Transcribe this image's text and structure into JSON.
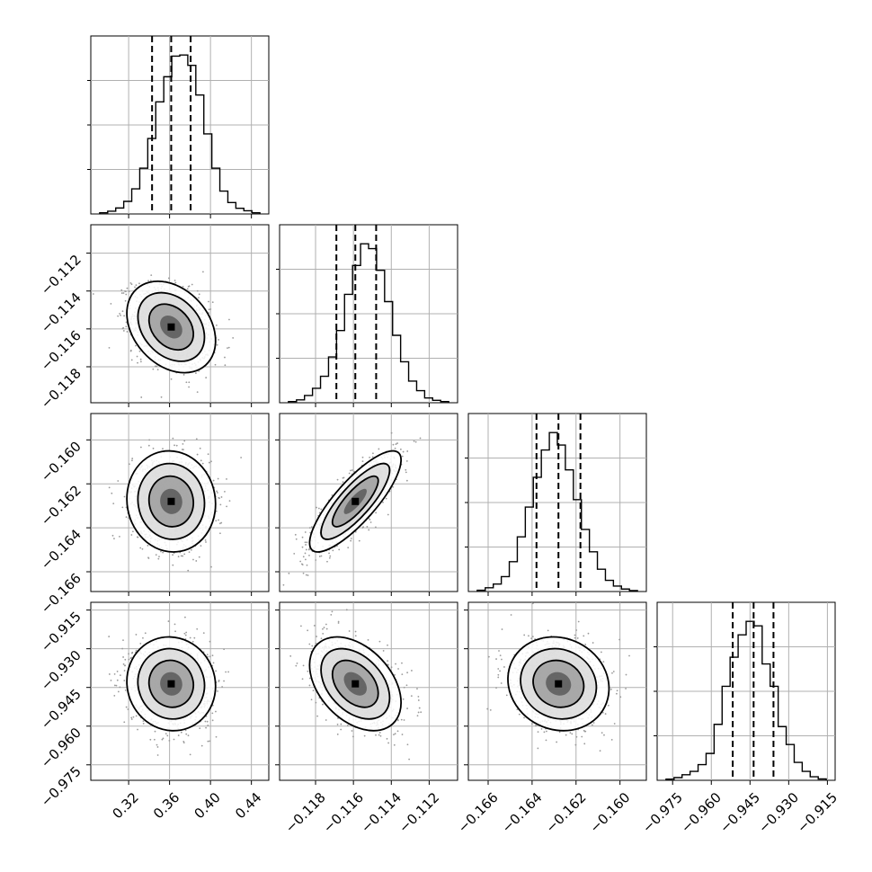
{
  "chart_data": {
    "type": "corner",
    "n_params": 4,
    "parameters": [
      {
        "index": 0,
        "median": 0.3616,
        "quantiles": [
          0.3429,
          0.3616,
          0.3806
        ],
        "range": [
          0.283,
          0.457
        ],
        "ticks": [
          0.32,
          0.36,
          0.4,
          0.44
        ],
        "tick_labels": [
          "0.32",
          "0.36",
          "0.40",
          "0.44"
        ],
        "hist": [
          0.5,
          1.2,
          2.6,
          5.5,
          11,
          20,
          33,
          49,
          60,
          69,
          69.5,
          65,
          52,
          35,
          20,
          10,
          5,
          2.5,
          1.4,
          0.5
        ]
      },
      {
        "index": 1,
        "median": -0.1159,
        "quantiles": [
          -0.1169,
          -0.1159,
          -0.1148
        ],
        "range": [
          -0.1199,
          -0.1105
        ],
        "ticks": [
          -0.118,
          -0.116,
          -0.114,
          -0.112
        ],
        "tick_labels": [
          "−0.118",
          "−0.116",
          "−0.114",
          "−0.112"
        ],
        "hist": [
          0.5,
          1.2,
          3,
          6,
          11,
          19,
          30,
          45,
          57,
          66,
          64,
          55,
          42,
          28,
          17,
          9,
          5,
          2,
          1,
          0.5
        ]
      },
      {
        "index": 2,
        "median": -0.1628,
        "quantiles": [
          -0.1638,
          -0.1628,
          -0.1618
        ],
        "range": [
          -0.1669,
          -0.1588
        ],
        "ticks": [
          -0.166,
          -0.164,
          -0.162,
          -0.16
        ],
        "tick_labels": [
          "−0.166",
          "−0.164",
          "−0.162",
          "−0.160"
        ],
        "hist": [
          0.5,
          1.5,
          3,
          6,
          12,
          22,
          34,
          46,
          57,
          64,
          59,
          49,
          37,
          25,
          16,
          9,
          4.5,
          2.2,
          1,
          0.4
        ]
      },
      {
        "index": 3,
        "median": -0.9436,
        "quantiles": [
          -0.9517,
          -0.9436,
          -0.9359
        ],
        "range": [
          -0.981,
          -0.912
        ],
        "ticks": [
          -0.975,
          -0.96,
          -0.945,
          -0.93,
          -0.915
        ],
        "tick_labels": [
          "−0.975",
          "−0.960",
          "−0.945",
          "−0.930",
          "−0.915"
        ],
        "hist": [
          0.5,
          1.2,
          2.5,
          4,
          7,
          12,
          25,
          42,
          55,
          65,
          71,
          69,
          52,
          42,
          24,
          16,
          8,
          4,
          1.6,
          0.6
        ]
      }
    ],
    "correlations": [
      {
        "pair": [
          1,
          0
        ],
        "rho": -0.3
      },
      {
        "pair": [
          2,
          0
        ],
        "rho": -0.05
      },
      {
        "pair": [
          2,
          1
        ],
        "rho": 0.82
      },
      {
        "pair": [
          3,
          0
        ],
        "rho": -0.05
      },
      {
        "pair": [
          3,
          1
        ],
        "rho": -0.4
      },
      {
        "pair": [
          3,
          2
        ],
        "rho": -0.1
      }
    ],
    "contour_levels_sigma": [
      0.5,
      1.0,
      1.5,
      2.0
    ],
    "grid": true,
    "legend": "none"
  }
}
